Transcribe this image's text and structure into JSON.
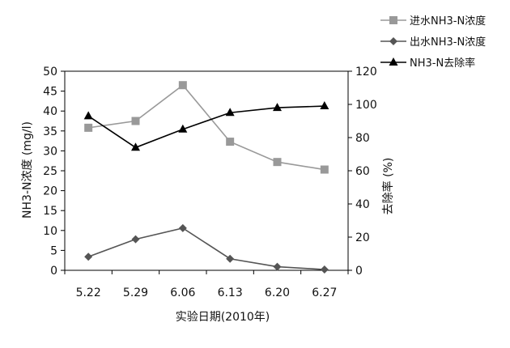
{
  "chart_data": {
    "type": "line",
    "categories": [
      "5.22",
      "5.29",
      "6.06",
      "6.13",
      "6.20",
      "6.27"
    ],
    "xlabel": "实验日期(2010年)",
    "ylabel_left": "NH3-N浓度 (mg/l)",
    "ylabel_right": "去除率 (%)",
    "ylim_left": [
      0,
      50
    ],
    "yticks_left": [
      "0",
      "5",
      "10",
      "15",
      "20",
      "25",
      "30",
      "35",
      "40",
      "45",
      "50"
    ],
    "ylim_right": [
      0,
      120
    ],
    "yticks_right": [
      "0",
      "20",
      "40",
      "60",
      "80",
      "100",
      "120"
    ],
    "grid": false,
    "legend_position": "top-right",
    "series": [
      {
        "name": "进水NH3-N浓度",
        "axis": "left",
        "color": "#999999",
        "marker": "square",
        "values": [
          35.8,
          37.5,
          46.5,
          32.3,
          27.2,
          25.3
        ]
      },
      {
        "name": "出水NH3-N浓度",
        "axis": "left",
        "color": "#555555",
        "marker": "diamond",
        "values": [
          3.4,
          7.8,
          10.6,
          2.9,
          0.9,
          0.2
        ]
      },
      {
        "name": "NH3-N去除率",
        "axis": "right",
        "color": "#000000",
        "marker": "triangle",
        "values": [
          93,
          74,
          85,
          95,
          98,
          99
        ]
      }
    ]
  }
}
